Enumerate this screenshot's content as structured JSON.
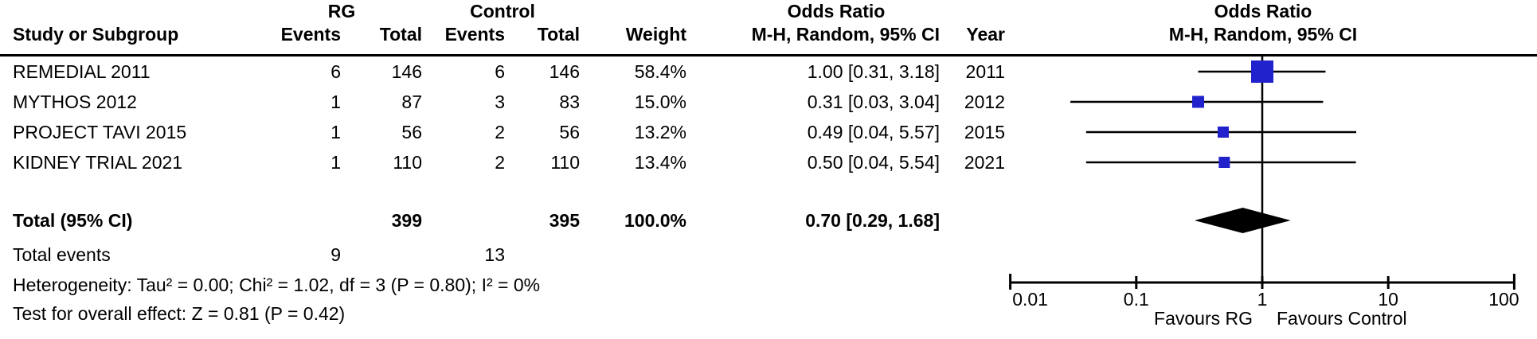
{
  "table": {
    "group_headers": {
      "rg": "RG",
      "control": "Control",
      "odds_ratio_left": "Odds Ratio",
      "odds_ratio_right": "Odds Ratio"
    },
    "col_headers": {
      "study": "Study or Subgroup",
      "rg_events": "Events",
      "rg_total": "Total",
      "control_events": "Events",
      "control_total": "Total",
      "weight": "Weight",
      "mh_ci": "M-H, Random, 95% CI",
      "year": "Year",
      "mh_ci_right": "M-H, Random, 95% CI"
    },
    "rows": [
      {
        "study": "REMEDIAL 2011",
        "rg_events": "6",
        "rg_total": "146",
        "control_events": "6",
        "control_total": "146",
        "weight": "58.4%",
        "or_ci": "1.00 [0.31, 3.18]",
        "year": "2011"
      },
      {
        "study": "MYTHOS 2012",
        "rg_events": "1",
        "rg_total": "87",
        "control_events": "3",
        "control_total": "83",
        "weight": "15.0%",
        "or_ci": "0.31 [0.03, 3.04]",
        "year": "2012"
      },
      {
        "study": "PROJECT TAVI 2015",
        "rg_events": "1",
        "rg_total": "56",
        "control_events": "2",
        "control_total": "56",
        "weight": "13.2%",
        "or_ci": "0.49 [0.04, 5.57]",
        "year": "2015"
      },
      {
        "study": "KIDNEY TRIAL 2021",
        "rg_events": "1",
        "rg_total": "110",
        "control_events": "2",
        "control_total": "110",
        "weight": "13.4%",
        "or_ci": "0.50 [0.04, 5.54]",
        "year": "2021"
      }
    ],
    "total_row": {
      "label": "Total (95% CI)",
      "rg_total": "399",
      "control_total": "395",
      "weight": "100.0%",
      "or_ci": "0.70 [0.29, 1.68]"
    },
    "total_events": {
      "label": "Total events",
      "rg": "9",
      "control": "13"
    },
    "heterogeneity": "Heterogeneity: Tau² = 0.00; Chi² = 1.02, df = 3 (P = 0.80); I² = 0%",
    "overall_effect": "Test for overall effect: Z = 0.81 (P = 0.42)"
  },
  "chart_data": {
    "type": "forest",
    "effect_measure": "Odds Ratio, M-H, Random, 95% CI",
    "studies": [
      {
        "name": "REMEDIAL 2011",
        "or": 1.0,
        "ci_low": 0.31,
        "ci_high": 3.18,
        "weight_pct": 58.4,
        "year": 2011
      },
      {
        "name": "MYTHOS 2012",
        "or": 0.31,
        "ci_low": 0.03,
        "ci_high": 3.04,
        "weight_pct": 15.0,
        "year": 2012
      },
      {
        "name": "PROJECT TAVI 2015",
        "or": 0.49,
        "ci_low": 0.04,
        "ci_high": 5.57,
        "weight_pct": 13.2,
        "year": 2015
      },
      {
        "name": "KIDNEY TRIAL 2021",
        "or": 0.5,
        "ci_low": 0.04,
        "ci_high": 5.54,
        "weight_pct": 13.4,
        "year": 2021
      }
    ],
    "total": {
      "or": 0.7,
      "ci_low": 0.29,
      "ci_high": 1.68
    },
    "axis": {
      "scale": "log",
      "tick_values": [
        0.01,
        0.1,
        1,
        10,
        100
      ],
      "tick_labels": [
        "0.01",
        "0.1",
        "1",
        "10",
        "100"
      ]
    },
    "favours_left": "Favours RG",
    "favours_right": "Favours Control",
    "marker_color": "#2222CC",
    "diamond_color": "#000000"
  }
}
